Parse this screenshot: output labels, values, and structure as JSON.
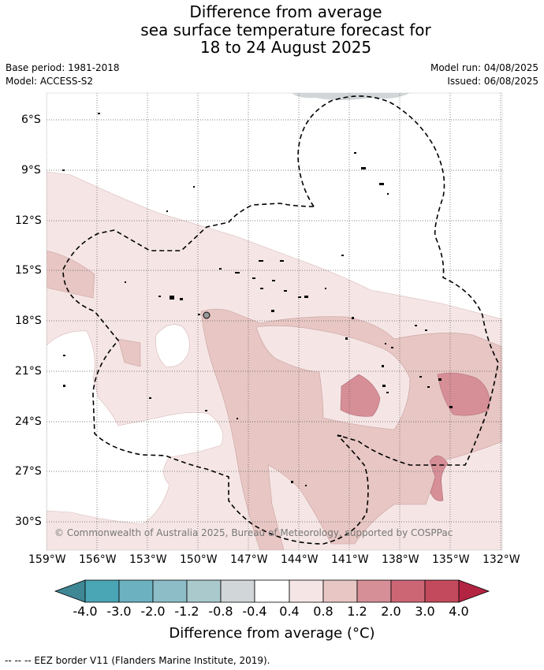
{
  "title": {
    "line1": "Difference from average",
    "line2": "sea surface temperature forecast for",
    "line3": "18 to 24 August 2025"
  },
  "meta": {
    "base_period": "Base period: 1981-2018",
    "model": "Model: ACCESS-S2",
    "model_run": "Model run: 04/08/2025",
    "issued": "Issued: 06/08/2025"
  },
  "map": {
    "lat_ticks": [
      "6°S",
      "9°S",
      "12°S",
      "15°S",
      "18°S",
      "21°S",
      "24°S",
      "27°S",
      "30°S"
    ],
    "lon_ticks": [
      "159°W",
      "156°W",
      "153°W",
      "150°W",
      "147°W",
      "144°W",
      "141°W",
      "138°W",
      "135°W",
      "132°W"
    ],
    "copyright": "© Commonwealth of Australia 2025, Bureau of Meteorology, supported by COSPPac"
  },
  "colorbar": {
    "labels": [
      "-4.0",
      "-3.0",
      "-2.0",
      "-1.2",
      "-0.8",
      "-0.4",
      "0.4",
      "0.8",
      "1.2",
      "2.0",
      "3.0",
      "4.0"
    ],
    "colors": [
      "#3f8795",
      "#4aa5b5",
      "#6cb1bf",
      "#8dbdc7",
      "#a9c9cc",
      "#d1d7d8",
      "#ffffff",
      "#f5e6e5",
      "#e7c6c3",
      "#d68e97",
      "#cc6675",
      "#c34a5c",
      "#b32443"
    ],
    "title": "Difference from average (°C)"
  },
  "footnote": "-- -- -- EEZ border V11 (Flanders Marine Institute, 2019)."
}
